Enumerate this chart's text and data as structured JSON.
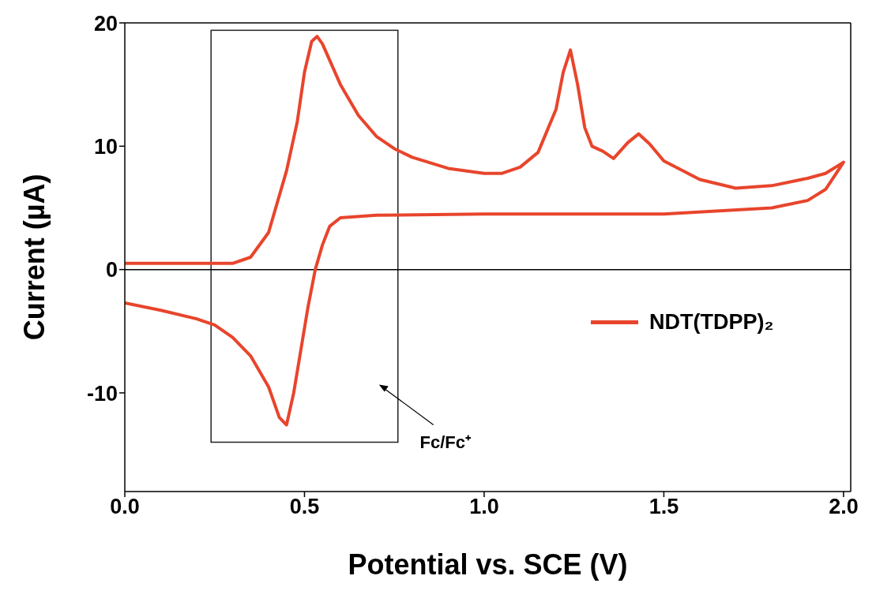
{
  "chart_data": {
    "type": "line",
    "xlabel": "Potential vs. SCE (V)",
    "ylabel": "Current (µA)",
    "xlim": [
      0,
      2.02
    ],
    "ylim": [
      -18,
      20
    ],
    "xticks": [
      {
        "value": 0,
        "label": "0.0"
      },
      {
        "value": 0.5,
        "label": "0.5"
      },
      {
        "value": 1,
        "label": "1.0"
      },
      {
        "value": 1.5,
        "label": "1.5"
      },
      {
        "value": 2,
        "label": "2.0"
      }
    ],
    "yticks": [
      -10,
      0,
      10,
      20
    ],
    "legend": "right",
    "marker": "none",
    "line_style": "solid",
    "ref_lines": [
      {
        "axis": "y",
        "value": 0,
        "color": "#000000"
      }
    ],
    "annotations": [
      "Fc/Fc⁺"
    ],
    "series": [
      {
        "name": "NDT(TDPP)₂",
        "color": "#e8452c",
        "x": [
          0,
          0.1,
          0.2,
          0.3,
          0.35,
          0.4,
          0.45,
          0.48,
          0.5,
          0.52,
          0.535,
          0.55,
          0.6,
          0.65,
          0.7,
          0.75,
          0.8,
          0.9,
          1.0,
          1.05,
          1.1,
          1.15,
          1.2,
          1.22,
          1.24,
          1.26,
          1.28,
          1.3,
          1.33,
          1.36,
          1.4,
          1.43,
          1.46,
          1.5,
          1.6,
          1.7,
          1.8,
          1.9,
          1.95,
          2.0,
          1.95,
          1.9,
          1.8,
          1.5,
          1.0,
          0.7,
          0.6,
          0.57,
          0.55,
          0.53,
          0.51,
          0.49,
          0.47,
          0.45,
          0.43,
          0.4,
          0.35,
          0.3,
          0.25,
          0.2,
          0.1,
          0.0
        ],
        "values": [
          0.5,
          0.5,
          0.5,
          0.5,
          1,
          3,
          8,
          12,
          16,
          18.5,
          18.9,
          18.3,
          15,
          12.5,
          10.8,
          9.8,
          9.1,
          8.2,
          7.8,
          7.8,
          8.3,
          9.5,
          13,
          16,
          17.8,
          15,
          11.5,
          10,
          9.6,
          9,
          10.3,
          11,
          10.2,
          8.8,
          7.3,
          6.6,
          6.8,
          7.4,
          7.8,
          8.7,
          6.5,
          5.6,
          5.0,
          4.5,
          4.5,
          4.4,
          4.2,
          3.5,
          2,
          0,
          -3,
          -6.5,
          -10,
          -12.6,
          -12,
          -9.5,
          -7,
          -5.5,
          -4.5,
          -4,
          -3.3,
          -2.7
        ]
      }
    ]
  }
}
